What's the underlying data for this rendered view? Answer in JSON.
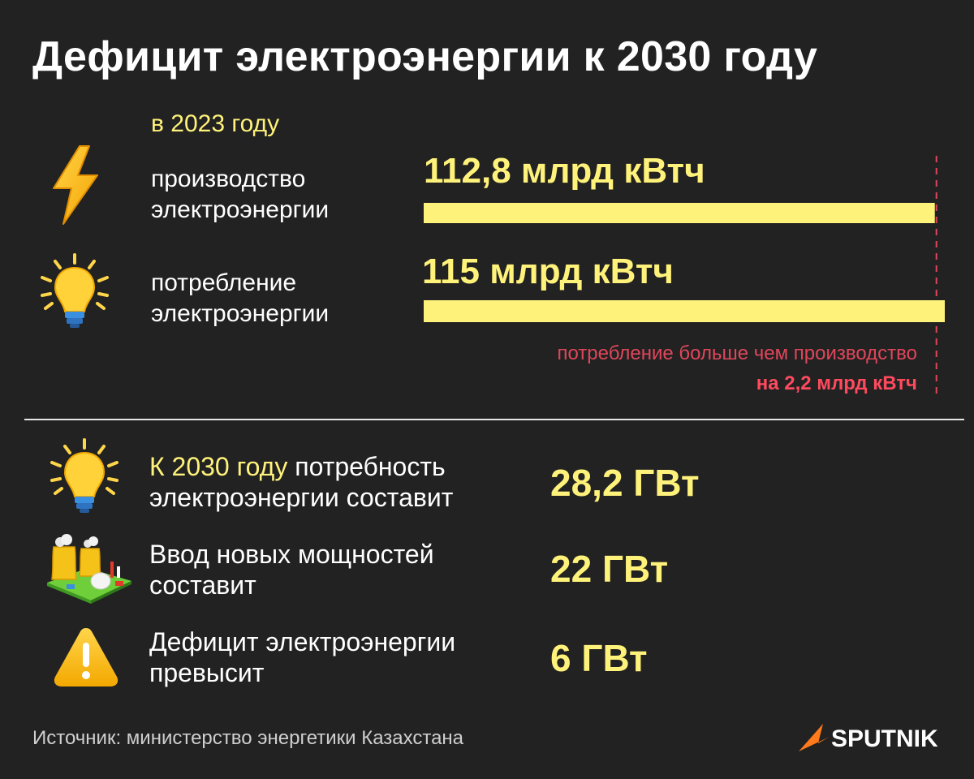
{
  "title": "Дефицит электроэнергии к 2030 году",
  "year_label": "в 2023 году",
  "chart_data": {
    "type": "bar",
    "orientation": "horizontal",
    "unit": "млрд кВтч",
    "categories": [
      "производство электроэнергии",
      "потребление электроэнергии"
    ],
    "values": [
      112.8,
      115
    ],
    "value_labels": [
      "112,8 млрд кВтч",
      "115 млрд кВтч"
    ],
    "bar_color": "#fff27a",
    "reference_line": {
      "value": 115,
      "style": "dashed",
      "color": "#e0465a"
    },
    "annotation": {
      "text": "потребление больше чем производство",
      "strong": "на 2,2 млрд кВтч"
    }
  },
  "rows": [
    {
      "icon": "lightning-icon",
      "label_line1": "производство",
      "label_line2": "электроэнергии"
    },
    {
      "icon": "lightbulb-icon",
      "label_line1": "потребление",
      "label_line2": "электроэнергии"
    }
  ],
  "stats": [
    {
      "icon": "lightbulb-icon",
      "accent": "К 2030 году",
      "rest": " потребность",
      "line2": "электроэнергии составит",
      "value": "28,2 ГВт"
    },
    {
      "icon": "power-plant-icon",
      "line1": "Ввод новых мощностей",
      "line2": "составит",
      "value": "22 ГВт"
    },
    {
      "icon": "warning-icon",
      "line1": "Дефицит электроэнергии",
      "line2": "превысит",
      "value": "6 ГВт"
    }
  ],
  "source": "Источник: министерство энергетики Казахстана",
  "logo": {
    "text": "SPUTNIK",
    "color": "#ff7a1a"
  }
}
